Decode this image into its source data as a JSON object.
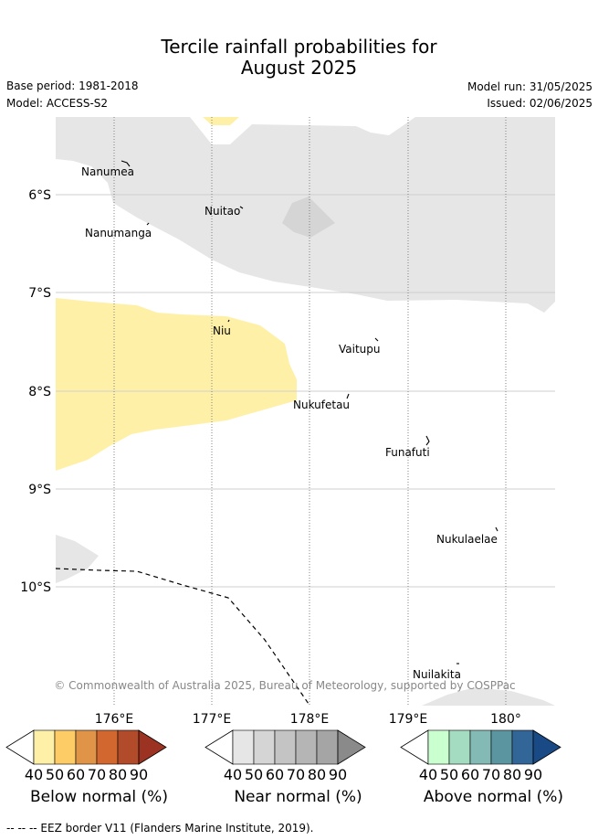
{
  "title_line1": "Tercile rainfall probabilities for",
  "title_line2": "August 2025",
  "base_period": "Base period: 1981-2018",
  "model": "Model: ACCESS-S2",
  "model_run": "Model run: 31/05/2025",
  "issued": "Issued: 02/06/2025",
  "copyright": "© Commonwealth of Australia 2025, Bureau of Meteorology, supported by COSPPac",
  "lat_labels": [
    "6°S",
    "7°S",
    "8°S",
    "9°S",
    "10°S"
  ],
  "lon_labels": [
    "176°E",
    "177°E",
    "178°E",
    "179°E",
    "180°"
  ],
  "places": [
    "Nanumea",
    "Nuitao",
    "Nanumanga",
    "Niu",
    "Vaitupu",
    "Nukufetau",
    "Funafuti",
    "Nukulaelae",
    "Nuilakita"
  ],
  "colorbars": [
    {
      "title": "Below normal (%)",
      "ticks": [
        "40",
        "50",
        "60",
        "70",
        "80",
        "90"
      ],
      "colors": [
        "#fff0a8",
        "#fdcc66",
        "#e09448",
        "#d2672f",
        "#b24b2a",
        "#9c3322"
      ]
    },
    {
      "title": "Near normal (%)",
      "ticks": [
        "40",
        "50",
        "60",
        "70",
        "80",
        "90"
      ],
      "colors": [
        "#e6e6e6",
        "#d5d5d5",
        "#c4c4c4",
        "#b5b5b5",
        "#a5a5a5",
        "#8a8a8a"
      ]
    },
    {
      "title": "Above normal (%)",
      "ticks": [
        "40",
        "50",
        "60",
        "70",
        "80",
        "90"
      ],
      "colors": [
        "#caffd0",
        "#a3dcc0",
        "#84bab5",
        "#5b95a0",
        "#326699",
        "#1a4a85"
      ]
    }
  ],
  "footnote": "-- -- -- EEZ border V11 (Flanders Marine Institute, 2019)."
}
